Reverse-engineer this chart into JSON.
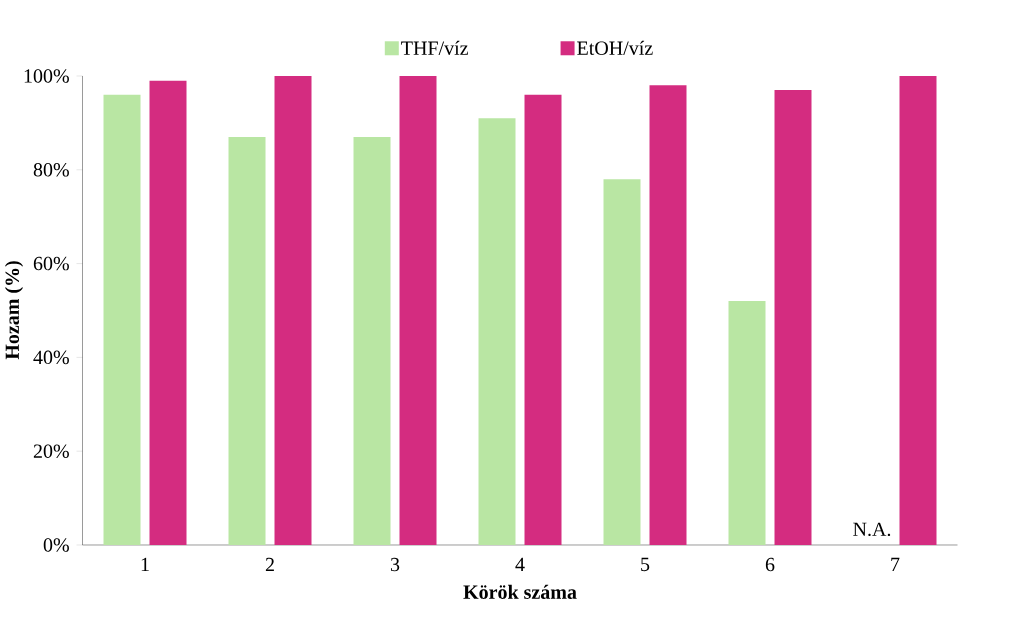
{
  "chart_data": {
    "type": "bar",
    "xlabel": "Körök száma",
    "ylabel": "Hozam (%)",
    "categories": [
      "1",
      "2",
      "3",
      "4",
      "5",
      "6",
      "7"
    ],
    "series": [
      {
        "name": "THF/víz",
        "color": "#b9e6a3",
        "values": [
          96,
          87,
          87,
          91,
          78,
          52,
          null
        ]
      },
      {
        "name": "EtOH/víz",
        "color": "#d42c80",
        "values": [
          99,
          100,
          100,
          96,
          98,
          97,
          100
        ]
      }
    ],
    "ylim": [
      0,
      100
    ],
    "yticks": [
      {
        "value": 0,
        "label": "0%"
      },
      {
        "value": 20,
        "label": "20%"
      },
      {
        "value": 40,
        "label": "40%"
      },
      {
        "value": 60,
        "label": "60%"
      },
      {
        "value": 80,
        "label": "80%"
      },
      {
        "value": 100,
        "label": "100%"
      }
    ],
    "annotations": [
      {
        "text": "N.A.",
        "x": "7",
        "y": 0
      }
    ],
    "legend": "top",
    "grid": false
  }
}
